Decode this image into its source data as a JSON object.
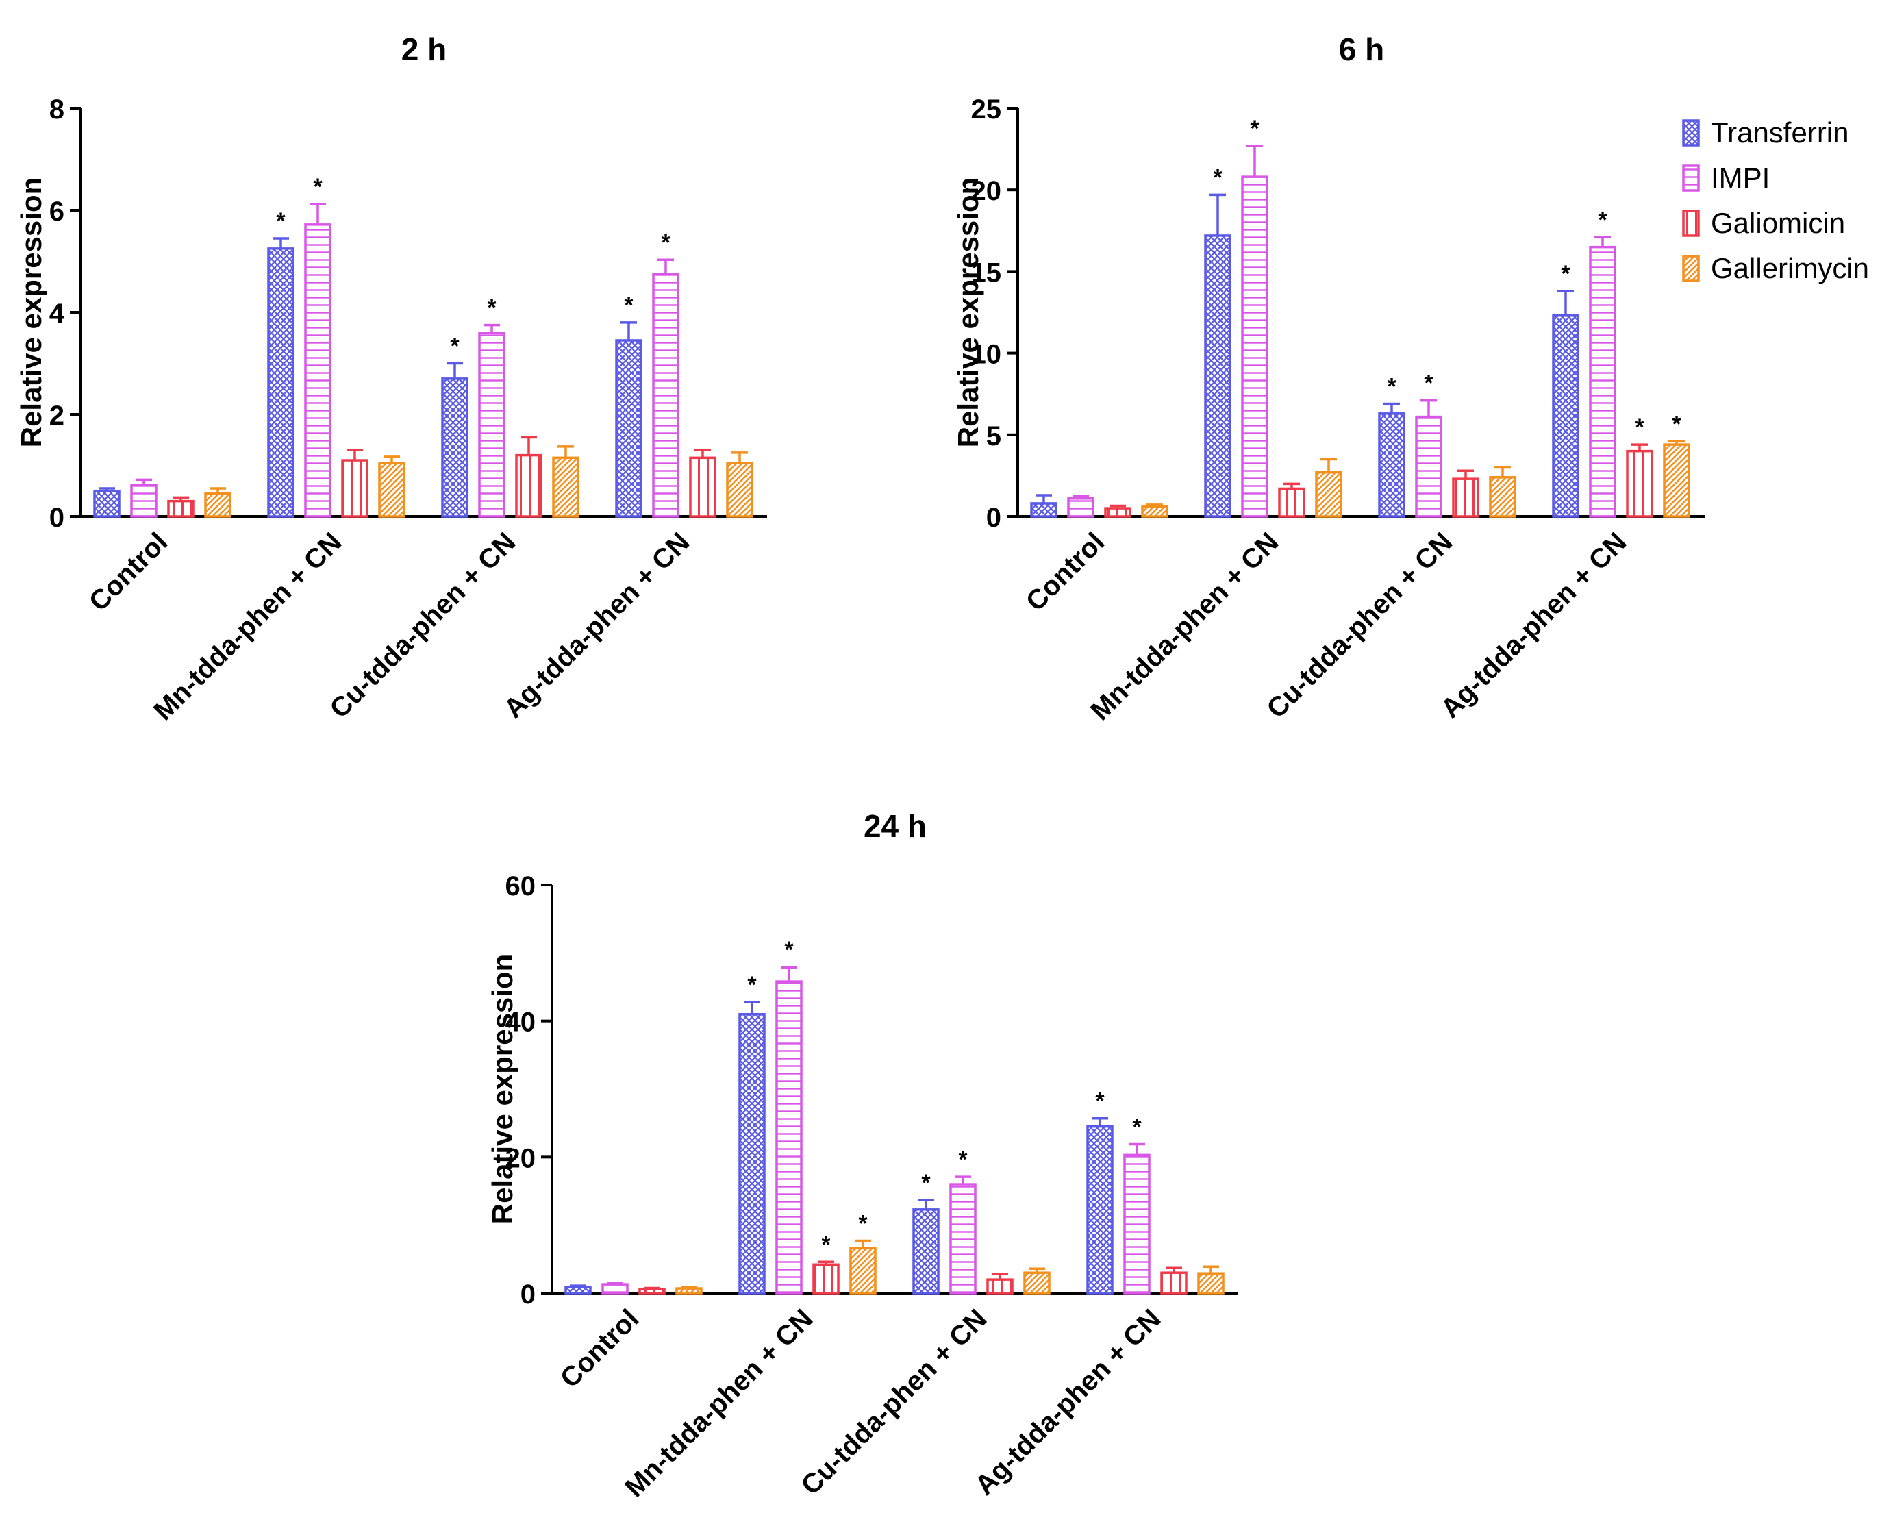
{
  "chart_data": {
    "type": "bar",
    "ylabel": "Relative expression",
    "categories": [
      "Control",
      "Mn-tdda-phen + CN",
      "Cu-tdda-phen + CN",
      "Ag-tdda-phen + CN"
    ],
    "legend": {
      "entries": [
        "Transferrin",
        "IMPI",
        "Galiomicin",
        "Gallerimycin"
      ],
      "placement": "right of 6 h panel"
    },
    "colors": {
      "Transferrin": "#5a5ae6",
      "IMPI": "#d957e6",
      "Galiomicin": "#ee3b4b",
      "Gallerimycin": "#f4901e"
    },
    "patterns": {
      "Transferrin": "crosshatch",
      "IMPI": "horizontal",
      "Galiomicin": "vertical",
      "Gallerimycin": "diagonal"
    },
    "significance_marker": "*",
    "panels": [
      {
        "title": "2 h",
        "ylim": [
          0,
          8
        ],
        "yticks": [
          0,
          2,
          4,
          6,
          8
        ],
        "series": [
          {
            "name": "Transferrin",
            "values": [
              0.5,
              5.25,
              2.7,
              3.45
            ],
            "errors": [
              0.05,
              0.2,
              0.3,
              0.35
            ],
            "significant": [
              false,
              true,
              true,
              true
            ]
          },
          {
            "name": "IMPI",
            "values": [
              0.62,
              5.72,
              3.6,
              4.75
            ],
            "errors": [
              0.1,
              0.4,
              0.15,
              0.28
            ],
            "significant": [
              false,
              true,
              true,
              true
            ]
          },
          {
            "name": "Galiomicin",
            "values": [
              0.3,
              1.1,
              1.2,
              1.15
            ],
            "errors": [
              0.07,
              0.2,
              0.35,
              0.15
            ],
            "significant": [
              false,
              false,
              false,
              false
            ]
          },
          {
            "name": "Gallerimycin",
            "values": [
              0.45,
              1.05,
              1.15,
              1.05
            ],
            "errors": [
              0.1,
              0.12,
              0.22,
              0.2
            ],
            "significant": [
              false,
              false,
              false,
              false
            ]
          }
        ]
      },
      {
        "title": "6 h",
        "ylim": [
          0,
          25
        ],
        "yticks": [
          0,
          5,
          10,
          15,
          20,
          25
        ],
        "series": [
          {
            "name": "Transferrin",
            "values": [
              0.8,
              17.2,
              6.3,
              12.3
            ],
            "errors": [
              0.5,
              2.5,
              0.6,
              1.5
            ],
            "significant": [
              false,
              true,
              true,
              true
            ]
          },
          {
            "name": "IMPI",
            "values": [
              1.1,
              20.8,
              6.1,
              16.5
            ],
            "errors": [
              0.15,
              1.9,
              1.0,
              0.6
            ],
            "significant": [
              false,
              true,
              true,
              true
            ]
          },
          {
            "name": "Galiomicin",
            "values": [
              0.5,
              1.7,
              2.3,
              4.0
            ],
            "errors": [
              0.15,
              0.3,
              0.5,
              0.4
            ],
            "significant": [
              false,
              false,
              false,
              true
            ]
          },
          {
            "name": "Gallerimycin",
            "values": [
              0.6,
              2.7,
              2.4,
              4.4
            ],
            "errors": [
              0.12,
              0.8,
              0.6,
              0.2
            ],
            "significant": [
              false,
              false,
              false,
              true
            ]
          }
        ]
      },
      {
        "title": "24 h",
        "ylim": [
          0,
          60
        ],
        "yticks": [
          0,
          20,
          40,
          60
        ],
        "series": [
          {
            "name": "Transferrin",
            "values": [
              0.9,
              41.0,
              12.3,
              24.5
            ],
            "errors": [
              0.2,
              1.8,
              1.4,
              1.2
            ],
            "significant": [
              false,
              true,
              true,
              true
            ]
          },
          {
            "name": "IMPI",
            "values": [
              1.3,
              45.8,
              16.0,
              20.3
            ],
            "errors": [
              0.2,
              2.1,
              1.1,
              1.6
            ],
            "significant": [
              false,
              true,
              true,
              true
            ]
          },
          {
            "name": "Galiomicin",
            "values": [
              0.6,
              4.2,
              2.0,
              3.0
            ],
            "errors": [
              0.15,
              0.4,
              0.8,
              0.7
            ],
            "significant": [
              false,
              true,
              false,
              false
            ]
          },
          {
            "name": "Gallerimycin",
            "values": [
              0.7,
              6.6,
              3.0,
              2.9
            ],
            "errors": [
              0.15,
              1.1,
              0.6,
              1.0
            ],
            "significant": [
              false,
              true,
              false,
              false
            ]
          }
        ]
      }
    ]
  }
}
